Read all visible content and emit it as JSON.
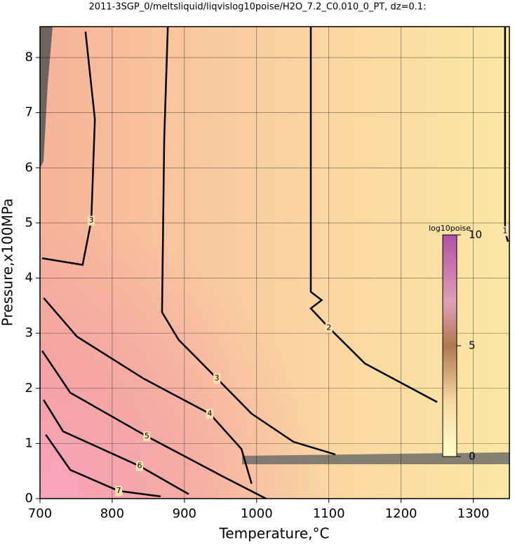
{
  "chart_data": {
    "type": "contour",
    "title": "2011-3SGP_0/meltsliquid/liqvislog10poise/H2O_7.2_C0.010_0_PT, dz=0.1:",
    "x_label": "Temperature,°C",
    "y_label": "Pressure,x100MPa",
    "xlim": [
      700,
      1350
    ],
    "ylim": [
      0,
      8.56
    ],
    "xticks": [
      700,
      800,
      900,
      1000,
      1100,
      1200,
      1300
    ],
    "yticks": [
      0,
      1,
      2,
      3,
      4,
      5,
      6,
      7,
      8
    ],
    "grid": true,
    "contours": [
      {
        "level": 1,
        "x": [
          1344,
          1344,
          1348
        ],
        "y": [
          8.56,
          4.85,
          4.66
        ]
      },
      {
        "level": 2,
        "x": [
          1075,
          1075,
          1090,
          1075,
          1100,
          1150,
          1200,
          1250
        ],
        "y": [
          8.56,
          3.75,
          3.6,
          3.45,
          3.1,
          2.45,
          2.1,
          1.75
        ]
      },
      {
        "level": 3,
        "x": [
          763,
          776,
          771,
          759,
          703
        ],
        "y": [
          8.47,
          6.88,
          5.04,
          4.24,
          4.36
        ]
      },
      {
        "level": 3,
        "x": [
          877,
          872,
          869,
          892,
          945,
          993,
          1051,
          1109
        ],
        "y": [
          8.56,
          6.5,
          3.38,
          2.88,
          2.18,
          1.54,
          1.03,
          0.8
        ]
      },
      {
        "level": 4,
        "x": [
          705,
          751,
          843,
          935,
          979,
          993
        ],
        "y": [
          3.64,
          2.94,
          2.18,
          1.54,
          0.9,
          0.27
        ]
      },
      {
        "level": 5,
        "x": [
          703,
          742,
          848,
          955,
          1013
        ],
        "y": [
          2.68,
          1.92,
          1.13,
          0.39,
          0
        ]
      },
      {
        "level": 6,
        "x": [
          705,
          732,
          838,
          906
        ],
        "y": [
          1.79,
          1.22,
          0.59,
          0.08
        ]
      },
      {
        "level": 7,
        "x": [
          708,
          742,
          809,
          867
        ],
        "y": [
          1.16,
          0.52,
          0.14,
          0.04
        ]
      }
    ],
    "colorbar": {
      "label": "log10poise",
      "lim": [
        0,
        10
      ],
      "ticks": [
        0,
        5,
        10
      ]
    }
  }
}
